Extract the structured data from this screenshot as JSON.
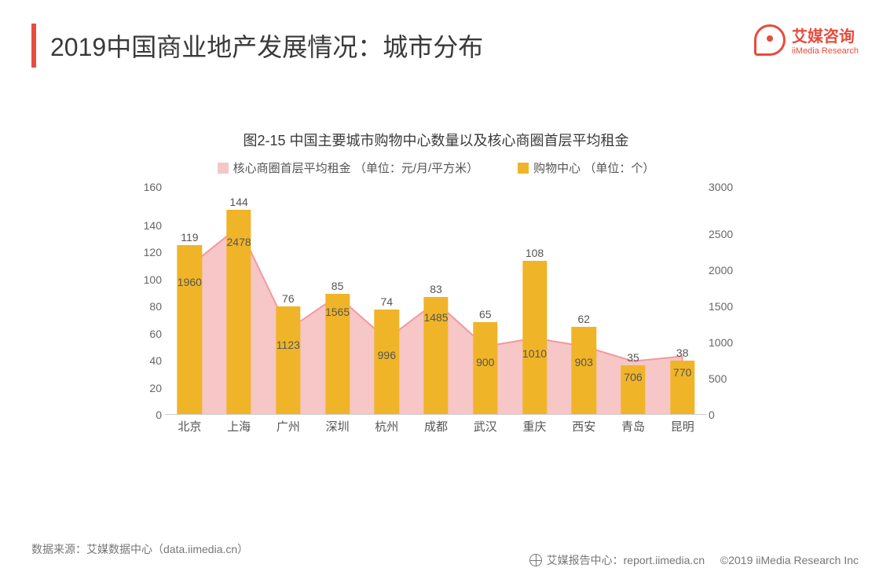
{
  "header": {
    "title": "2019中国商业地产发展情况：城市分布",
    "logo_cn": "艾媒咨询",
    "logo_en": "iiMedia Research",
    "accent_color": "#e74c3c"
  },
  "chart": {
    "type": "bar+area",
    "title": "图2-15 中国主要城市购物中心数量以及核心商圈首层平均租金",
    "title_fontsize": 18,
    "label_fontsize": 14,
    "legend": {
      "rent": {
        "label": "核心商圈首层平均租金 （单位：元/月/平方米）",
        "color": "#f7c6c6"
      },
      "mall": {
        "label": "购物中心 （单位：个）",
        "color": "#f0b428"
      }
    },
    "background_color": "#ffffff",
    "cities": [
      "北京",
      "上海",
      "广州",
      "深圳",
      "杭州",
      "成都",
      "武汉",
      "重庆",
      "西安",
      "青岛",
      "昆明"
    ],
    "mall_counts": [
      119,
      144,
      76,
      85,
      74,
      83,
      65,
      108,
      62,
      35,
      38
    ],
    "rents": [
      1960,
      2478,
      1123,
      1565,
      996,
      1485,
      900,
      1010,
      903,
      706,
      770
    ],
    "y_left": {
      "min": 0,
      "max": 160,
      "step": 20
    },
    "y_right": {
      "min": 0,
      "max": 3000,
      "step": 500
    },
    "bar_color": "#f0b428",
    "area_fill": "#f7c6c6",
    "area_stroke": "#f09aa0",
    "bar_width_ratio": 0.5,
    "text_color": "#555555",
    "axis_line_color": "#cccccc"
  },
  "footer": {
    "source": "数据来源：艾媒数据中心（data.iimedia.cn）",
    "report_center": "艾媒报告中心：report.iimedia.cn",
    "copyright": "©2019  iiMedia Research Inc"
  }
}
